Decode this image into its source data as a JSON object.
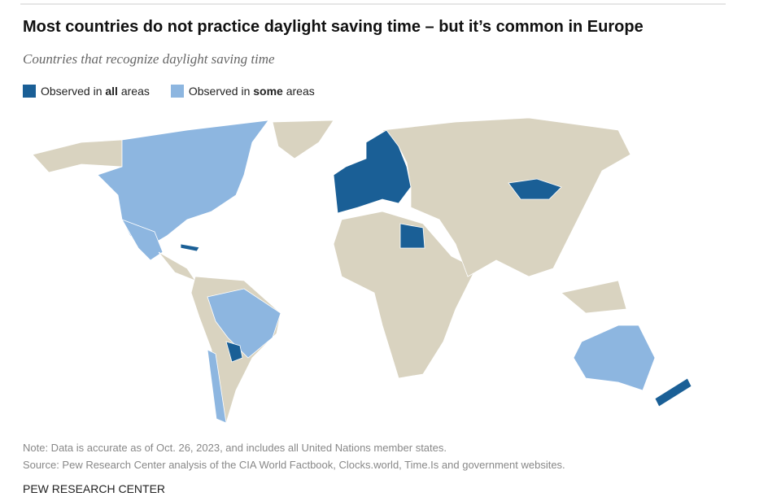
{
  "header": {
    "title": "Most countries do not practice daylight saving time – but it’s common in Europe",
    "subtitle": "Countries that recognize daylight saving time"
  },
  "legend": {
    "items": [
      {
        "parts": [
          "Observed in ",
          "all",
          " areas"
        ],
        "color": "#1a5f96"
      },
      {
        "parts": [
          "Observed in ",
          "some",
          " areas"
        ],
        "color": "#8db6e0"
      }
    ]
  },
  "footer": {
    "note": "Note: Data is accurate as of Oct. 26, 2023, and includes all United Nations member states.",
    "source": "Source: Pew Research Center analysis of the CIA World Factbook, Clocks.world, Time.Is and government websites.",
    "brand": "PEW RESEARCH CENTER"
  }
}
